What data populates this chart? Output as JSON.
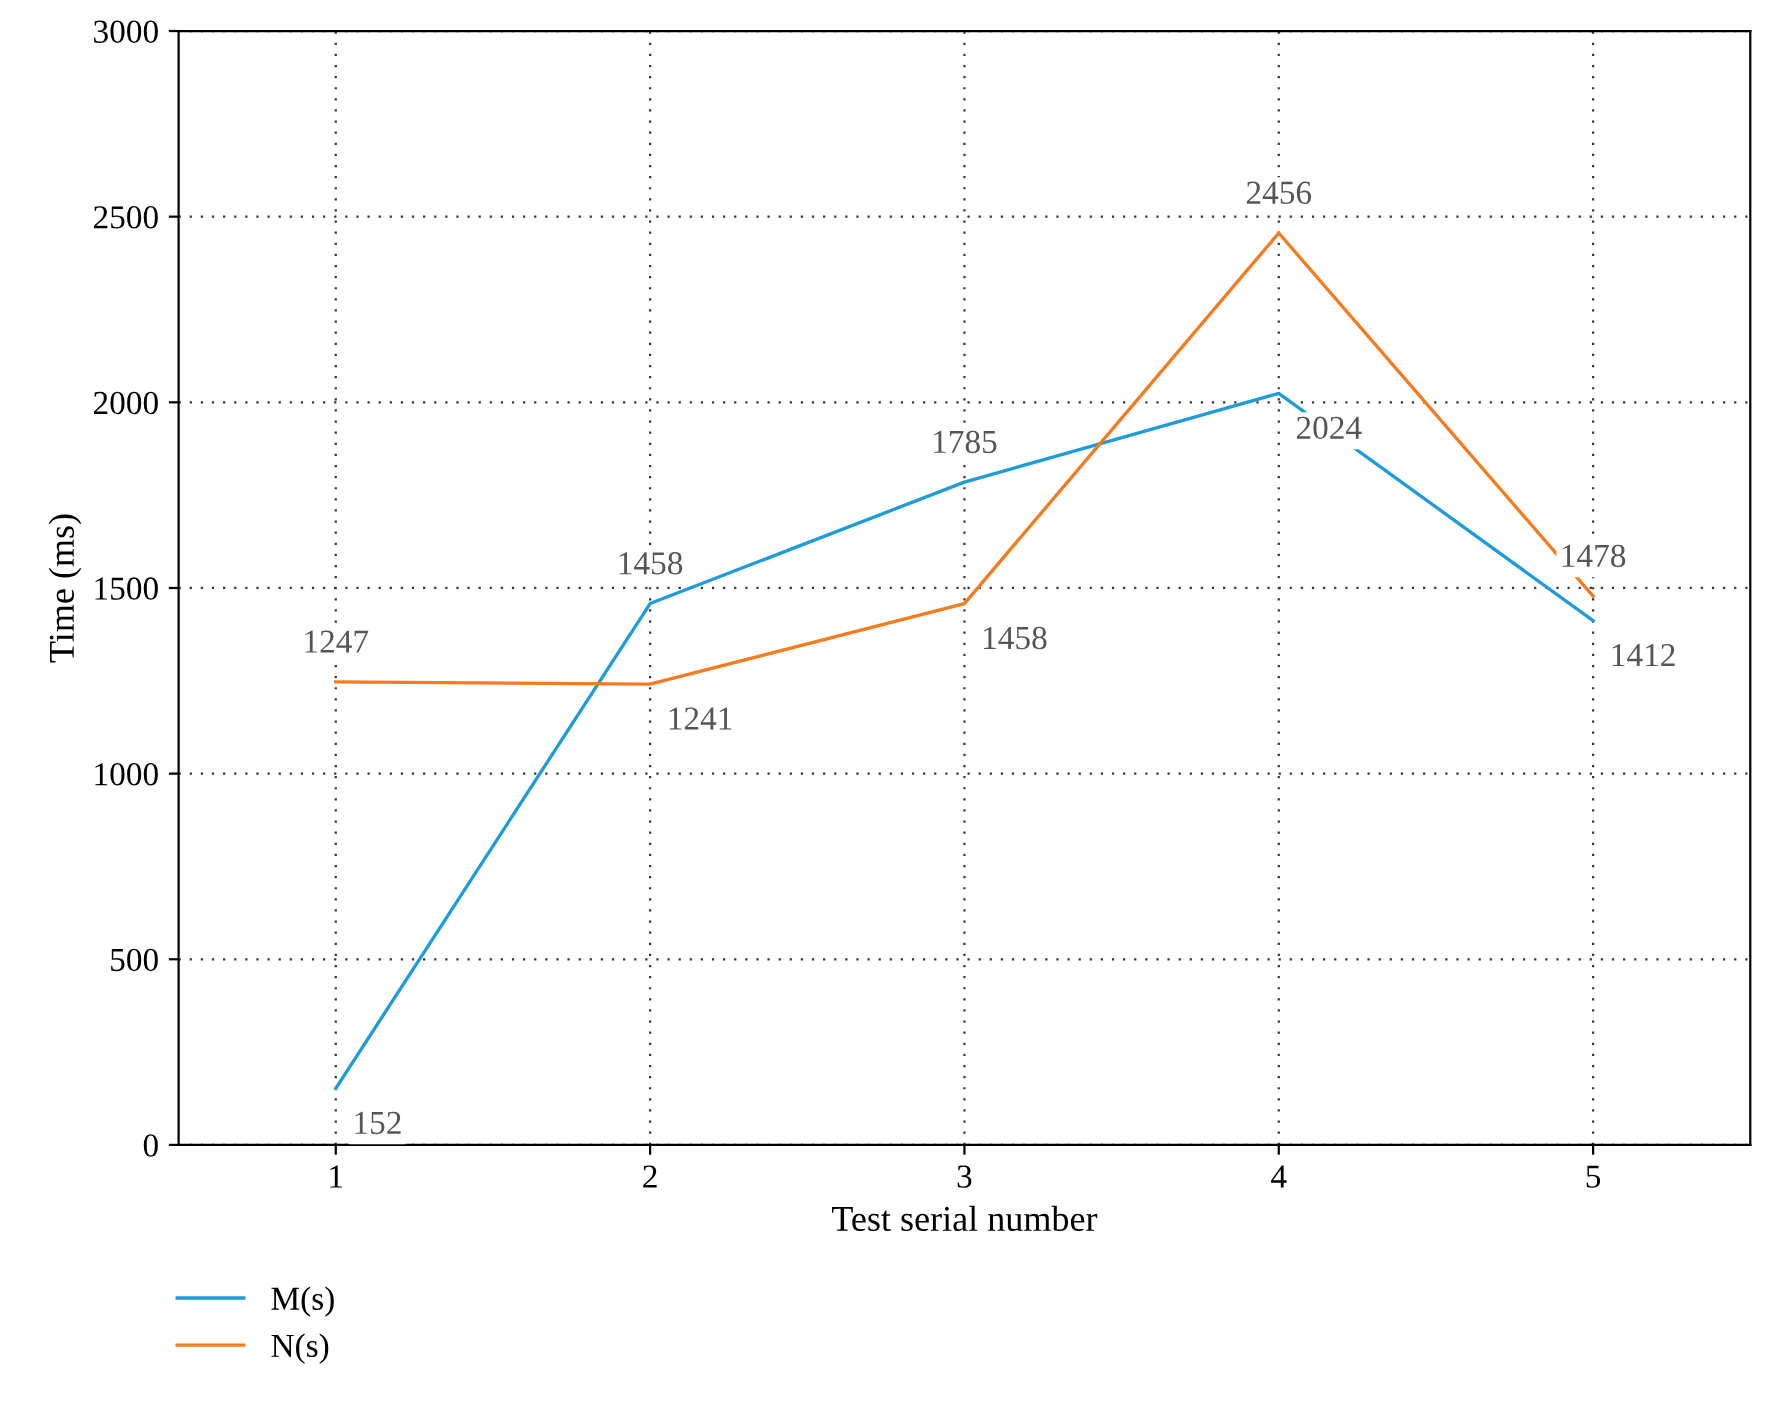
{
  "chart_data": {
    "type": "line",
    "xlabel": "Test serial number",
    "ylabel": "Time (ms)",
    "x": [
      1,
      2,
      3,
      4,
      5
    ],
    "series": [
      {
        "name": "M(s)",
        "color": "#1f9bd7",
        "values": [
          152,
          1458,
          1785,
          2024,
          1412
        ]
      },
      {
        "name": "N(s)",
        "color": "#f47b20",
        "values": [
          1247,
          1241,
          1458,
          2456,
          1478
        ]
      }
    ],
    "xlim": [
      0.5,
      5.5
    ],
    "xticks": [
      1,
      2,
      3,
      4,
      5
    ],
    "ylim": [
      0,
      3000
    ],
    "yticks": [
      0,
      500,
      1000,
      1500,
      2000,
      2500,
      3000
    ],
    "grid": true,
    "legend": "bottom left",
    "data_labels": true,
    "marker": "none",
    "line_style": "solid"
  }
}
